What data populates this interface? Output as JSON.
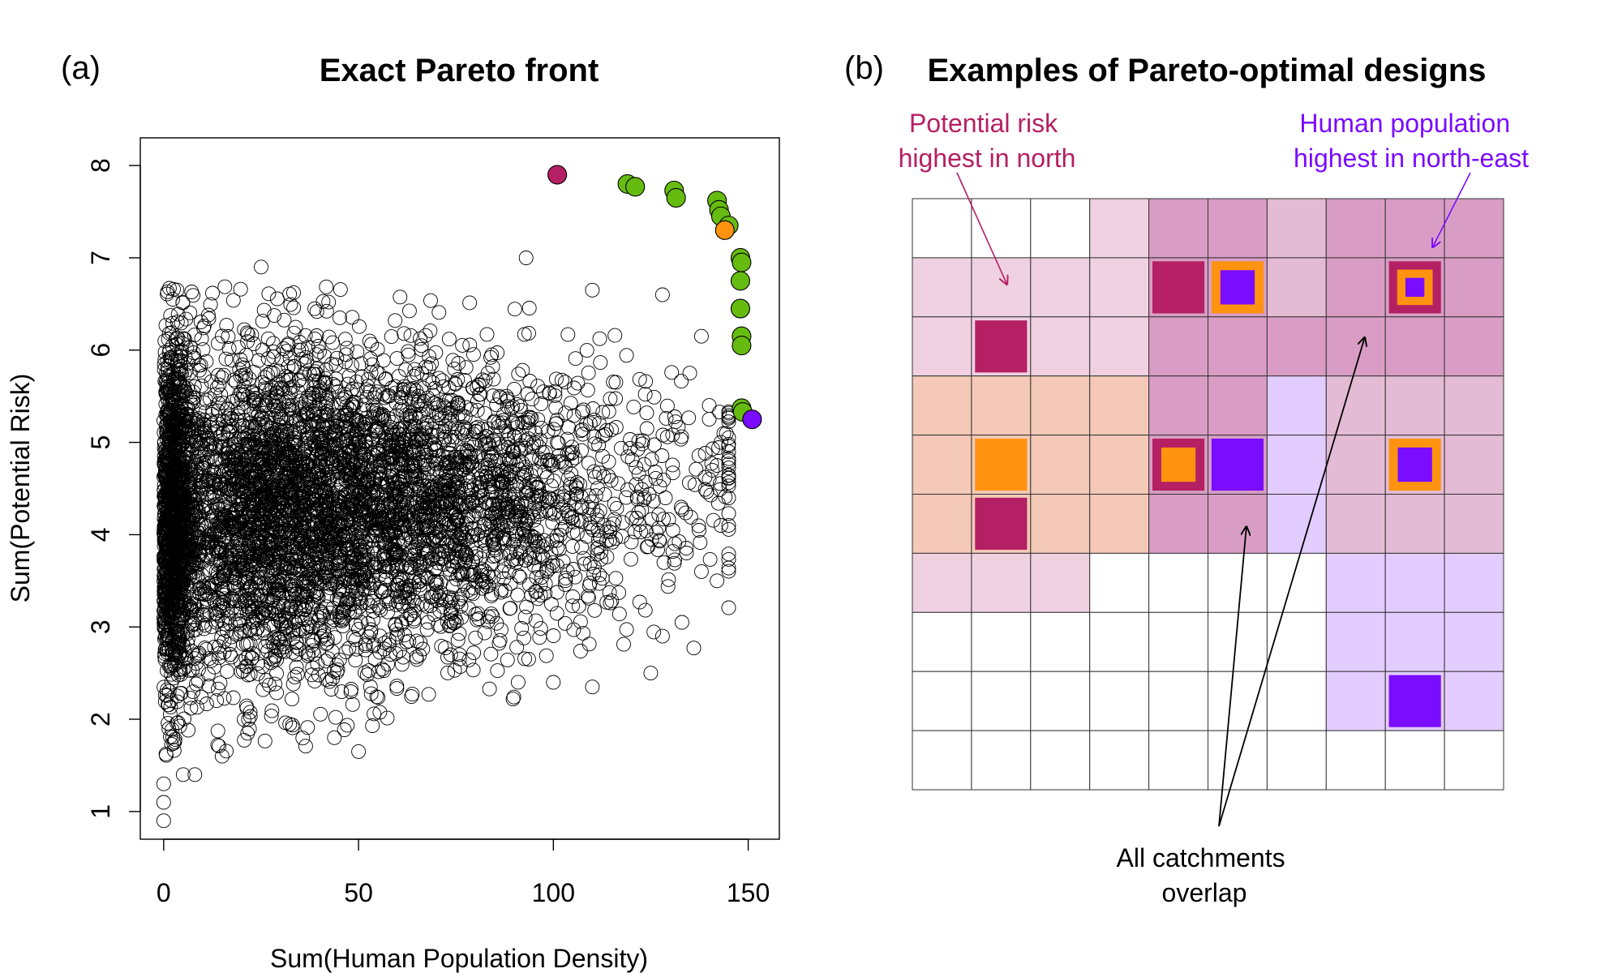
{
  "chart_data": [
    {
      "type": "scatter",
      "panel_label": "(a)",
      "title": "Exact Pareto front",
      "xlabel": "Sum(Human Population Density)",
      "ylabel": "Sum(Potential Risk)",
      "xlim": [
        -6,
        158
      ],
      "ylim": [
        0.7,
        8.3
      ],
      "x_ticks": [
        0,
        50,
        100,
        150
      ],
      "y_ticks": [
        1,
        2,
        3,
        4,
        5,
        6,
        7,
        8
      ],
      "grid": false,
      "background_cloud": {
        "marker": "open-circle",
        "color": "#000000",
        "approx_points": 6000,
        "x_range": [
          0,
          145
        ],
        "y_range": [
          0.9,
          7.0
        ],
        "outlier_points": [
          {
            "x": 0,
            "y": 0.9
          },
          {
            "x": 0,
            "y": 1.1
          },
          {
            "x": 0,
            "y": 1.3
          },
          {
            "x": 5,
            "y": 1.4
          },
          {
            "x": 8,
            "y": 1.4
          },
          {
            "x": 15,
            "y": 1.6
          },
          {
            "x": 50,
            "y": 1.65
          },
          {
            "x": 25,
            "y": 6.9
          },
          {
            "x": 93,
            "y": 7.0
          },
          {
            "x": 110,
            "y": 6.65
          },
          {
            "x": 128,
            "y": 6.6
          },
          {
            "x": 138,
            "y": 6.15
          },
          {
            "x": 135,
            "y": 5.75
          },
          {
            "x": 140,
            "y": 5.4
          },
          {
            "x": 140,
            "y": 5.25
          },
          {
            "x": 143,
            "y": 5.0
          },
          {
            "x": 145,
            "y": 4.9
          },
          {
            "x": 142,
            "y": 4.75
          },
          {
            "x": 140,
            "y": 4.6
          },
          {
            "x": 143,
            "y": 4.1
          },
          {
            "x": 142,
            "y": 3.5
          },
          {
            "x": 138,
            "y": 3.6
          },
          {
            "x": 133,
            "y": 3.05
          },
          {
            "x": 128,
            "y": 2.9
          },
          {
            "x": 125,
            "y": 2.5
          },
          {
            "x": 110,
            "y": 2.35
          },
          {
            "x": 100,
            "y": 2.4
          }
        ]
      },
      "series": [
        {
          "role": "pareto-front",
          "color": "#66bb11",
          "points": [
            {
              "x": 119,
              "y": 7.8
            },
            {
              "x": 121,
              "y": 7.77
            },
            {
              "x": 131,
              "y": 7.73
            },
            {
              "x": 131.5,
              "y": 7.65
            },
            {
              "x": 142,
              "y": 7.62
            },
            {
              "x": 142.5,
              "y": 7.52
            },
            {
              "x": 143,
              "y": 7.45
            },
            {
              "x": 145,
              "y": 7.35
            },
            {
              "x": 148,
              "y": 7.0
            },
            {
              "x": 148.3,
              "y": 6.95
            },
            {
              "x": 148,
              "y": 6.75
            },
            {
              "x": 148,
              "y": 6.45
            },
            {
              "x": 148.3,
              "y": 6.15
            },
            {
              "x": 148.3,
              "y": 6.05
            },
            {
              "x": 148.3,
              "y": 5.37
            },
            {
              "x": 148.6,
              "y": 5.33
            }
          ]
        },
        {
          "role": "highlight",
          "color": "#b51f63",
          "points": [
            {
              "x": 101,
              "y": 7.9
            }
          ]
        },
        {
          "role": "highlight",
          "color": "#ff9310",
          "points": [
            {
              "x": 144,
              "y": 7.3
            }
          ]
        },
        {
          "role": "highlight",
          "color": "#7a0cff",
          "points": [
            {
              "x": 151,
              "y": 5.25
            }
          ]
        }
      ]
    },
    {
      "type": "heatmap",
      "panel_label": "(b)",
      "title": "Examples of Pareto-optimal designs",
      "rows": 10,
      "cols": 10,
      "palette": {
        "W": "#ffffff",
        "P": "#efd1e1",
        "M": "#d99dc5",
        "R": "#e4bbd4",
        "O": "#f4c9b7",
        "L": "#e3ccff"
      },
      "cells": [
        "WWWPMMRMMM",
        "PPPPMMRMMM",
        "PPPPMMMMMM",
        "OOOOMMLRRR",
        "OOOOMMLRRR",
        "OOOOMMLRRR",
        "PPPWWWWLLL",
        "WWWWWWWLLL",
        "WWWWWWWLLL",
        "WWWWWWWWWW"
      ],
      "markers": [
        {
          "row": 1,
          "col": 4,
          "layers": [
            {
              "color": "#b51f63",
              "size": 0.88
            }
          ]
        },
        {
          "row": 1,
          "col": 5,
          "layers": [
            {
              "color": "#ff9310",
              "size": 0.88
            },
            {
              "color": "#7a0cff",
              "size": 0.58
            }
          ]
        },
        {
          "row": 1,
          "col": 8,
          "layers": [
            {
              "color": "#b51f63",
              "size": 0.88
            },
            {
              "color": "#ff9310",
              "size": 0.6
            },
            {
              "color": "#7a0cff",
              "size": 0.32
            }
          ]
        },
        {
          "row": 2,
          "col": 1,
          "layers": [
            {
              "color": "#b51f63",
              "size": 0.88
            }
          ]
        },
        {
          "row": 4,
          "col": 1,
          "layers": [
            {
              "color": "#ff9310",
              "size": 0.88
            }
          ]
        },
        {
          "row": 4,
          "col": 4,
          "layers": [
            {
              "color": "#b51f63",
              "size": 0.88
            },
            {
              "color": "#ff9310",
              "size": 0.58
            }
          ]
        },
        {
          "row": 4,
          "col": 5,
          "layers": [
            {
              "color": "#7a0cff",
              "size": 0.88
            }
          ]
        },
        {
          "row": 4,
          "col": 8,
          "layers": [
            {
              "color": "#ff9310",
              "size": 0.88
            },
            {
              "color": "#7a0cff",
              "size": 0.58
            }
          ]
        },
        {
          "row": 5,
          "col": 1,
          "layers": [
            {
              "color": "#b51f63",
              "size": 0.88
            }
          ]
        },
        {
          "row": 8,
          "col": 8,
          "layers": [
            {
              "color": "#7a0cff",
              "size": 0.88
            }
          ]
        }
      ],
      "annotations": [
        {
          "lines": [
            "Potential risk",
            "highest in north"
          ],
          "color": "#b51f63",
          "align": "middle",
          "points_to": {
            "row": 1.45,
            "col": 1.6
          }
        },
        {
          "lines": [
            "Human population",
            "highest in north-east"
          ],
          "color": "#7a0cff",
          "align": "end",
          "points_to": {
            "row": 0.82,
            "col": 8.8
          }
        },
        {
          "lines": [
            "All catchments",
            "overlap"
          ],
          "color": "#000000",
          "align": "middle",
          "points_to": [
            {
              "row": 5.55,
              "col": 5.65
            },
            {
              "row": 2.35,
              "col": 7.65
            }
          ]
        }
      ]
    }
  ]
}
